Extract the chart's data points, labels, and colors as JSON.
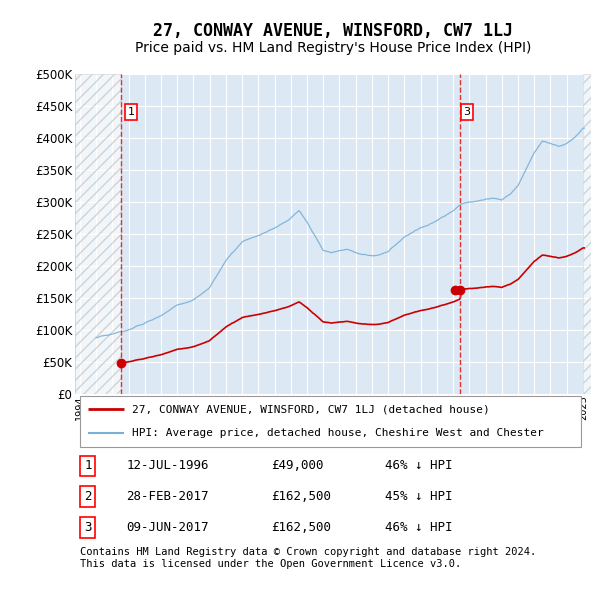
{
  "title": "27, CONWAY AVENUE, WINSFORD, CW7 1LJ",
  "subtitle": "Price paid vs. HM Land Registry's House Price Index (HPI)",
  "title_fontsize": 12,
  "subtitle_fontsize": 10,
  "ylim": [
    0,
    500000
  ],
  "yticks": [
    0,
    50000,
    100000,
    150000,
    200000,
    250000,
    300000,
    350000,
    400000,
    450000,
    500000
  ],
  "ytick_labels": [
    "£0",
    "£50K",
    "£100K",
    "£150K",
    "£200K",
    "£250K",
    "£300K",
    "£350K",
    "£400K",
    "£450K",
    "£500K"
  ],
  "xlim_start": 1993.7,
  "xlim_end": 2025.5,
  "bg_color": "#dce9f5",
  "grid_color": "#ffffff",
  "red_line_color": "#cc0000",
  "blue_line_color": "#7ab0d8",
  "transaction_marker_color": "#cc0000",
  "dashed_line_color": "#dd3333",
  "tr1_year": 1996.54,
  "tr1_price": 49000,
  "tr2_year": 2017.12,
  "tr2_price": 162500,
  "tr3_year": 2017.44,
  "tr3_price": 162500,
  "legend_items": [
    {
      "label": "27, CONWAY AVENUE, WINSFORD, CW7 1LJ (detached house)",
      "color": "#cc0000",
      "lw": 2
    },
    {
      "label": "HPI: Average price, detached house, Cheshire West and Chester",
      "color": "#7ab0d8",
      "lw": 1.5
    }
  ],
  "table_rows": [
    {
      "num": "1",
      "date": "12-JUL-1996",
      "price": "£49,000",
      "hpi": "46% ↓ HPI"
    },
    {
      "num": "2",
      "date": "28-FEB-2017",
      "price": "£162,500",
      "hpi": "45% ↓ HPI"
    },
    {
      "num": "3",
      "date": "09-JUN-2017",
      "price": "£162,500",
      "hpi": "46% ↓ HPI"
    }
  ],
  "footnote": "Contains HM Land Registry data © Crown copyright and database right 2024.\nThis data is licensed under the Open Government Licence v3.0.",
  "footnote_fontsize": 7.5
}
